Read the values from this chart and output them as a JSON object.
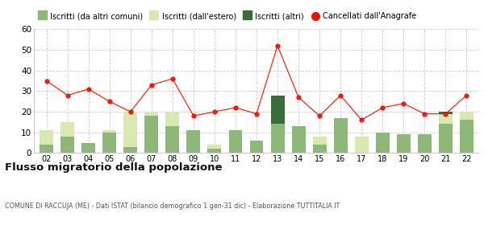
{
  "years": [
    "02",
    "03",
    "04",
    "05",
    "06",
    "07",
    "08",
    "09",
    "10",
    "11",
    "12",
    "13",
    "14",
    "15",
    "16",
    "17",
    "18",
    "19",
    "20",
    "21",
    "22"
  ],
  "iscritti_comuni": [
    4,
    8,
    5,
    10,
    3,
    18,
    13,
    11,
    2,
    11,
    6,
    14,
    13,
    4,
    17,
    0,
    10,
    9,
    9,
    14,
    16
  ],
  "iscritti_estero": [
    7,
    7,
    0,
    1,
    17,
    2,
    7,
    0,
    2,
    0,
    0,
    0,
    0,
    4,
    0,
    8,
    0,
    0,
    0,
    5,
    4
  ],
  "iscritti_altri": [
    0,
    0,
    0,
    0,
    0,
    0,
    0,
    0,
    0,
    0,
    0,
    14,
    0,
    0,
    0,
    0,
    0,
    0,
    0,
    1,
    0
  ],
  "cancellati": [
    35,
    28,
    31,
    25,
    20,
    33,
    36,
    18,
    20,
    22,
    19,
    52,
    27,
    18,
    28,
    16,
    22,
    24,
    19,
    19,
    28
  ],
  "color_comuni": "#8db87a",
  "color_estero": "#d9e8b0",
  "color_altri": "#3a6b3c",
  "color_cancellati": "#ee1100",
  "ylim": [
    0,
    60
  ],
  "yticks": [
    0,
    10,
    20,
    30,
    40,
    50,
    60
  ],
  "title": "Flusso migratorio della popolazione",
  "subtitle": "COMUNE DI RACCUJA (ME) - Dati ISTAT (bilancio demografico 1 gen-31 dic) - Elaborazione TUTTITALIA.IT",
  "legend_labels": [
    "Iscritti (da altri comuni)",
    "Iscritti (dall'estero)",
    "Iscritti (altri)",
    "Cancellati dall'Anagrafe"
  ],
  "bg_color": "#ffffff",
  "grid_color": "#cccccc"
}
